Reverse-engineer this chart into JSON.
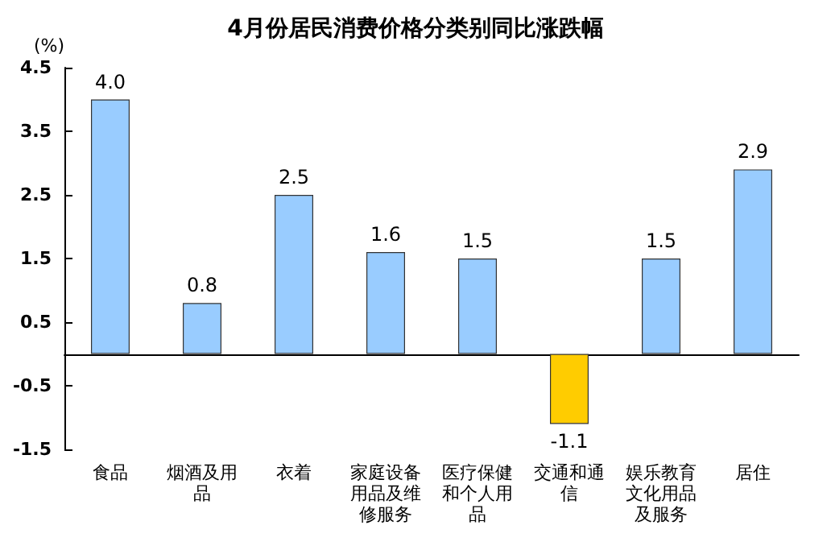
{
  "chart_data": {
    "type": "bar",
    "title": "4月份居民消费价格分类别同比涨跌幅",
    "ylabel": "(%)",
    "categories": [
      "食品",
      "烟酒及用品",
      "衣着",
      "家庭设备用品及维修服务",
      "医疗保健和个人用品",
      "交通和通信",
      "娱乐教育文化用品及服务",
      "居住"
    ],
    "values": [
      4.0,
      0.8,
      2.5,
      1.6,
      1.5,
      -1.1,
      1.5,
      2.9
    ],
    "colors": [
      "#99ccff",
      "#99ccff",
      "#99ccff",
      "#99ccff",
      "#99ccff",
      "#ffcc00",
      "#99ccff",
      "#99ccff"
    ],
    "ylim": [
      -1.5,
      4.5
    ],
    "yticks": [
      -1.5,
      -0.5,
      0.5,
      1.5,
      2.5,
      3.5,
      4.5
    ],
    "grid": false,
    "value_labels": [
      "4.0",
      "0.8",
      "2.5",
      "1.6",
      "1.5",
      "-1.1",
      "1.5",
      "2.9"
    ]
  }
}
